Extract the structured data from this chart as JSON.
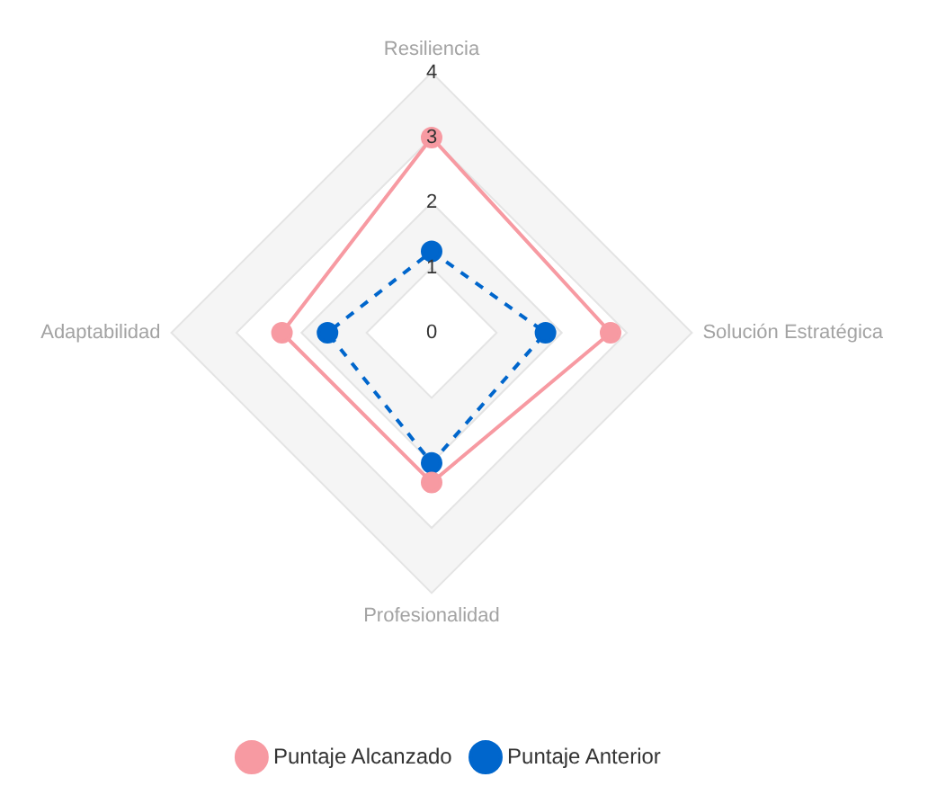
{
  "chart_data": {
    "type": "radar",
    "categories": [
      "Resiliencia",
      "Solución Estratégica",
      "Profesionalidad",
      "Adaptabilidad"
    ],
    "series": [
      {
        "name": "Puntaje Alcanzado",
        "color": "#f79aa2",
        "values": [
          3,
          2.75,
          2.3,
          2.3
        ],
        "line_style": "solid"
      },
      {
        "name": "Puntaje Anterior",
        "color": "#0066cc",
        "values": [
          1.25,
          1.75,
          2,
          1.6
        ],
        "line_style": "dashed"
      }
    ],
    "ylim": [
      0,
      4
    ],
    "yticks": [
      0,
      1,
      2,
      3,
      4
    ],
    "grid": true,
    "legend": "bottom",
    "marker": "circle"
  }
}
